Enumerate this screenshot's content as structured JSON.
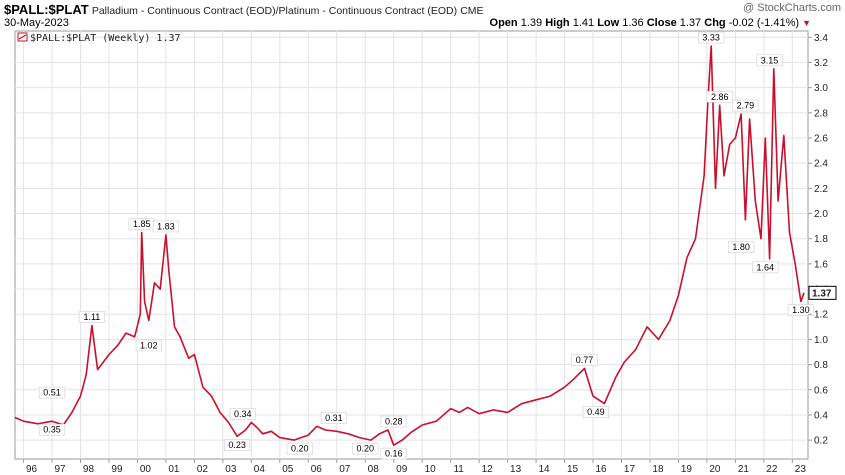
{
  "header": {
    "symbol": "$PALL:$PLAT",
    "description": "Palladium - Continuous Contract (EOD)/Platinum - Continuous Contract (EOD)",
    "exchange": "CME",
    "date": "30-May-2023",
    "watermark": "@ StockCharts.com",
    "open_label": "Open",
    "open": "1.39",
    "high_label": "High",
    "high": "1.41",
    "low_label": "Low",
    "low": "1.36",
    "close_label": "Close",
    "close": "1.37",
    "chg_label": "Chg",
    "chg": "-0.02 (-1.41%)"
  },
  "chart_data": {
    "type": "line",
    "legend": "$PALL:$PLAT (Weekly) 1.37",
    "last_value": "1.37",
    "line_color": "#c8102e",
    "x_tick_labels": [
      "96",
      "97",
      "98",
      "99",
      "00",
      "01",
      "02",
      "03",
      "04",
      "05",
      "06",
      "07",
      "08",
      "09",
      "10",
      "11",
      "12",
      "13",
      "14",
      "15",
      "16",
      "17",
      "18",
      "19",
      "20",
      "21",
      "22",
      "23"
    ],
    "y_tick_labels": [
      "0.2",
      "0.4",
      "0.6",
      "0.8",
      "1.0",
      "1.2",
      "1.4",
      "1.6",
      "1.8",
      "2.0",
      "2.2",
      "2.4",
      "2.6",
      "2.8",
      "3.0",
      "3.2",
      "3.4"
    ],
    "ylim": [
      0.05,
      3.45
    ],
    "xlim": [
      1995.7,
      2023.55
    ],
    "grid": true,
    "series": [
      {
        "x": [
          1995.7,
          1996.0,
          1996.5,
          1997.0,
          1997.4,
          1997.7,
          1998.0,
          1998.2,
          1998.4,
          1998.6,
          1998.8,
          1999.0,
          1999.3,
          1999.6,
          1999.9,
          2000.1,
          2000.15,
          2000.25,
          2000.4,
          2000.6,
          2000.8,
          2001.0,
          2001.1,
          2001.3,
          2001.5,
          2001.8,
          2002.0,
          2002.3,
          2002.6,
          2002.9,
          2003.2,
          2003.5,
          2003.8,
          2004.0,
          2004.2,
          2004.4,
          2004.7,
          2005.0,
          2005.5,
          2006.0,
          2006.3,
          2006.6,
          2007.0,
          2007.4,
          2007.8,
          2008.2,
          2008.5,
          2008.8,
          2009.0,
          2009.3,
          2009.6,
          2010.0,
          2010.5,
          2011.0,
          2011.3,
          2011.6,
          2012.0,
          2012.5,
          2013.0,
          2013.5,
          2014.0,
          2014.5,
          2015.0,
          2015.3,
          2015.7,
          2016.0,
          2016.4,
          2016.8,
          2017.1,
          2017.5,
          2017.9,
          2018.3,
          2018.7,
          2019.0,
          2019.3,
          2019.6,
          2019.9,
          2020.05,
          2020.15,
          2020.3,
          2020.45,
          2020.6,
          2020.8,
          2021.0,
          2021.2,
          2021.35,
          2021.5,
          2021.7,
          2021.9,
          2022.05,
          2022.2,
          2022.35,
          2022.5,
          2022.7,
          2022.9,
          2023.1,
          2023.3,
          2023.41
        ],
        "values": [
          0.38,
          0.35,
          0.33,
          0.35,
          0.32,
          0.42,
          0.55,
          0.72,
          1.11,
          0.76,
          0.82,
          0.88,
          0.95,
          1.05,
          1.02,
          1.2,
          1.85,
          1.3,
          1.15,
          1.45,
          1.4,
          1.83,
          1.55,
          1.1,
          1.02,
          0.85,
          0.88,
          0.62,
          0.55,
          0.42,
          0.34,
          0.23,
          0.28,
          0.34,
          0.3,
          0.25,
          0.27,
          0.22,
          0.2,
          0.24,
          0.31,
          0.28,
          0.27,
          0.25,
          0.22,
          0.2,
          0.25,
          0.28,
          0.16,
          0.2,
          0.26,
          0.32,
          0.35,
          0.45,
          0.42,
          0.46,
          0.41,
          0.44,
          0.42,
          0.49,
          0.52,
          0.55,
          0.62,
          0.68,
          0.77,
          0.55,
          0.49,
          0.7,
          0.82,
          0.92,
          1.1,
          1.0,
          1.15,
          1.35,
          1.65,
          1.8,
          2.3,
          2.95,
          3.33,
          2.2,
          2.86,
          2.3,
          2.55,
          2.6,
          2.79,
          1.95,
          2.75,
          2.1,
          1.8,
          2.6,
          1.64,
          3.15,
          2.1,
          2.62,
          1.85,
          1.6,
          1.3,
          1.37
        ]
      }
    ],
    "annotations": [
      {
        "x": 1998.4,
        "y": 1.11,
        "label": "1.11",
        "pos": "above"
      },
      {
        "x": 1997.0,
        "y": 0.51,
        "label": "0.51",
        "pos": "above"
      },
      {
        "x": 1997.0,
        "y": 0.35,
        "label": "0.35",
        "pos": "below"
      },
      {
        "x": 2000.15,
        "y": 1.85,
        "label": "1.85",
        "pos": "above"
      },
      {
        "x": 2000.4,
        "y": 1.02,
        "label": "1.02",
        "pos": "below"
      },
      {
        "x": 2001.0,
        "y": 1.83,
        "label": "1.83",
        "pos": "above"
      },
      {
        "x": 2003.7,
        "y": 0.34,
        "label": "0.34",
        "pos": "above"
      },
      {
        "x": 2003.5,
        "y": 0.23,
        "label": "0.23",
        "pos": "below"
      },
      {
        "x": 2005.7,
        "y": 0.2,
        "label": "0.20",
        "pos": "below"
      },
      {
        "x": 2006.9,
        "y": 0.31,
        "label": "0.31",
        "pos": "above"
      },
      {
        "x": 2008.0,
        "y": 0.2,
        "label": "0.20",
        "pos": "below"
      },
      {
        "x": 2009.0,
        "y": 0.28,
        "label": "0.28",
        "pos": "above"
      },
      {
        "x": 2009.0,
        "y": 0.16,
        "label": "0.16",
        "pos": "below"
      },
      {
        "x": 2015.7,
        "y": 0.77,
        "label": "0.77",
        "pos": "above"
      },
      {
        "x": 2016.1,
        "y": 0.49,
        "label": "0.49",
        "pos": "below"
      },
      {
        "x": 2020.15,
        "y": 3.33,
        "label": "3.33",
        "pos": "above"
      },
      {
        "x": 2020.45,
        "y": 2.86,
        "label": "2.86",
        "pos": "above"
      },
      {
        "x": 2021.35,
        "y": 2.79,
        "label": "2.79",
        "pos": "above"
      },
      {
        "x": 2021.2,
        "y": 1.8,
        "label": "1.80",
        "pos": "below"
      },
      {
        "x": 2022.2,
        "y": 3.15,
        "label": "3.15",
        "pos": "above"
      },
      {
        "x": 2022.05,
        "y": 1.64,
        "label": "1.64",
        "pos": "below"
      },
      {
        "x": 2023.3,
        "y": 1.3,
        "label": "1.30",
        "pos": "below"
      }
    ]
  }
}
